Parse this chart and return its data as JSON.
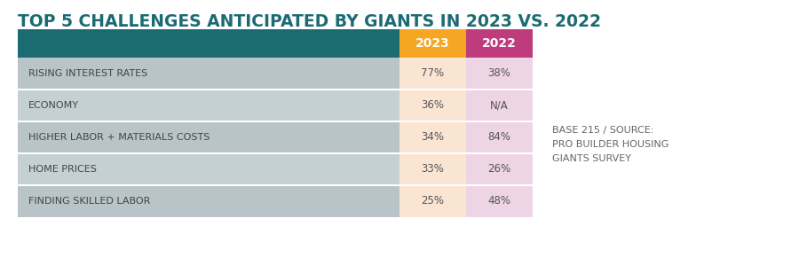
{
  "title": "TOP 5 CHALLENGES ANTICIPATED BY GIANTS IN 2023 VS. 2022",
  "categories": [
    "RISING INTEREST RATES",
    "ECONOMY",
    "HIGHER LABOR + MATERIALS COSTS",
    "HOME PRICES",
    "FINDING SKILLED LABOR"
  ],
  "col2023": [
    "77%",
    "36%",
    "34%",
    "33%",
    "25%"
  ],
  "col2022": [
    "38%",
    "N/A",
    "84%",
    "26%",
    "48%"
  ],
  "header_label_2023": "2023",
  "header_label_2022": "2022",
  "header_bg_2023": "#F5A623",
  "header_bg_2022": "#BE3B7C",
  "header_text_color": "#FFFFFF",
  "label_col_bg": "#1C6B73",
  "row_bg_odd": "#B8C4C8",
  "row_bg_even": "#C5D0D4",
  "col2023_bg": "#FAE5D3",
  "col2022_bg": "#EDD5E5",
  "row_text_color": "#444444",
  "cell_text_color": "#555555",
  "source_text": "BASE 215 / SOURCE:\nPRO BUILDER HOUSING\nGIANTS SURVEY",
  "source_text_color": "#666666",
  "title_color": "#1C6B73",
  "background_color": "#FFFFFF",
  "fig_width": 9.0,
  "fig_height": 3.08,
  "dpi": 100
}
